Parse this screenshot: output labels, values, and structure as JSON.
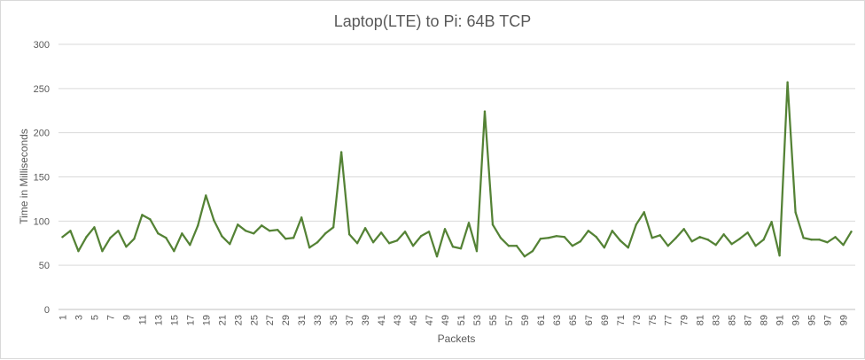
{
  "chart_data": {
    "type": "line",
    "title": "Laptop(LTE) to Pi: 64B TCP",
    "xlabel": "Packets",
    "ylabel": "Time in Milliseconds",
    "ylim": [
      0,
      300
    ],
    "yticks": [
      0,
      50,
      100,
      150,
      200,
      250,
      300
    ],
    "x": [
      1,
      2,
      3,
      4,
      5,
      6,
      7,
      8,
      9,
      10,
      11,
      12,
      13,
      14,
      15,
      16,
      17,
      18,
      19,
      20,
      21,
      22,
      23,
      24,
      25,
      26,
      27,
      28,
      29,
      30,
      31,
      32,
      33,
      34,
      35,
      36,
      37,
      38,
      39,
      40,
      41,
      42,
      43,
      44,
      45,
      46,
      47,
      48,
      49,
      50,
      51,
      52,
      53,
      54,
      55,
      56,
      57,
      58,
      59,
      60,
      61,
      62,
      63,
      64,
      65,
      66,
      67,
      68,
      69,
      70,
      71,
      72,
      73,
      74,
      75,
      76,
      77,
      78,
      79,
      80,
      81,
      82,
      83,
      84,
      85,
      86,
      87,
      88,
      89,
      90,
      91,
      92,
      93,
      94,
      95,
      96,
      97,
      98,
      99,
      100
    ],
    "xtick_labels": [
      "1",
      "3",
      "5",
      "7",
      "9",
      "11",
      "13",
      "15",
      "17",
      "19",
      "21",
      "23",
      "25",
      "27",
      "29",
      "31",
      "33",
      "35",
      "37",
      "39",
      "41",
      "43",
      "45",
      "47",
      "49",
      "51",
      "53",
      "55",
      "57",
      "59",
      "61",
      "63",
      "65",
      "67",
      "69",
      "71",
      "73",
      "75",
      "77",
      "79",
      "81",
      "83",
      "85",
      "87",
      "89",
      "91",
      "93",
      "95",
      "97",
      "99"
    ],
    "grid": true,
    "legend": "none",
    "series": [
      {
        "color": "#548235",
        "values": [
          82,
          89,
          66,
          82,
          93,
          66,
          81,
          89,
          71,
          80,
          107,
          102,
          86,
          81,
          66,
          86,
          73,
          95,
          129,
          101,
          83,
          74,
          96,
          89,
          86,
          95,
          89,
          90,
          80,
          81,
          104,
          70,
          76,
          86,
          93,
          178,
          85,
          75,
          92,
          76,
          87,
          75,
          78,
          88,
          72,
          83,
          88,
          60,
          91,
          71,
          69,
          98,
          66,
          224,
          96,
          81,
          72,
          72,
          60,
          66,
          80,
          81,
          83,
          82,
          72,
          77,
          89,
          82,
          70,
          89,
          78,
          70,
          96,
          110,
          81,
          84,
          72,
          81,
          91,
          77,
          82,
          79,
          73,
          85,
          74,
          80,
          87,
          72,
          79,
          99,
          61,
          257,
          110,
          81,
          79,
          79,
          76,
          82,
          73,
          88
        ]
      }
    ]
  }
}
